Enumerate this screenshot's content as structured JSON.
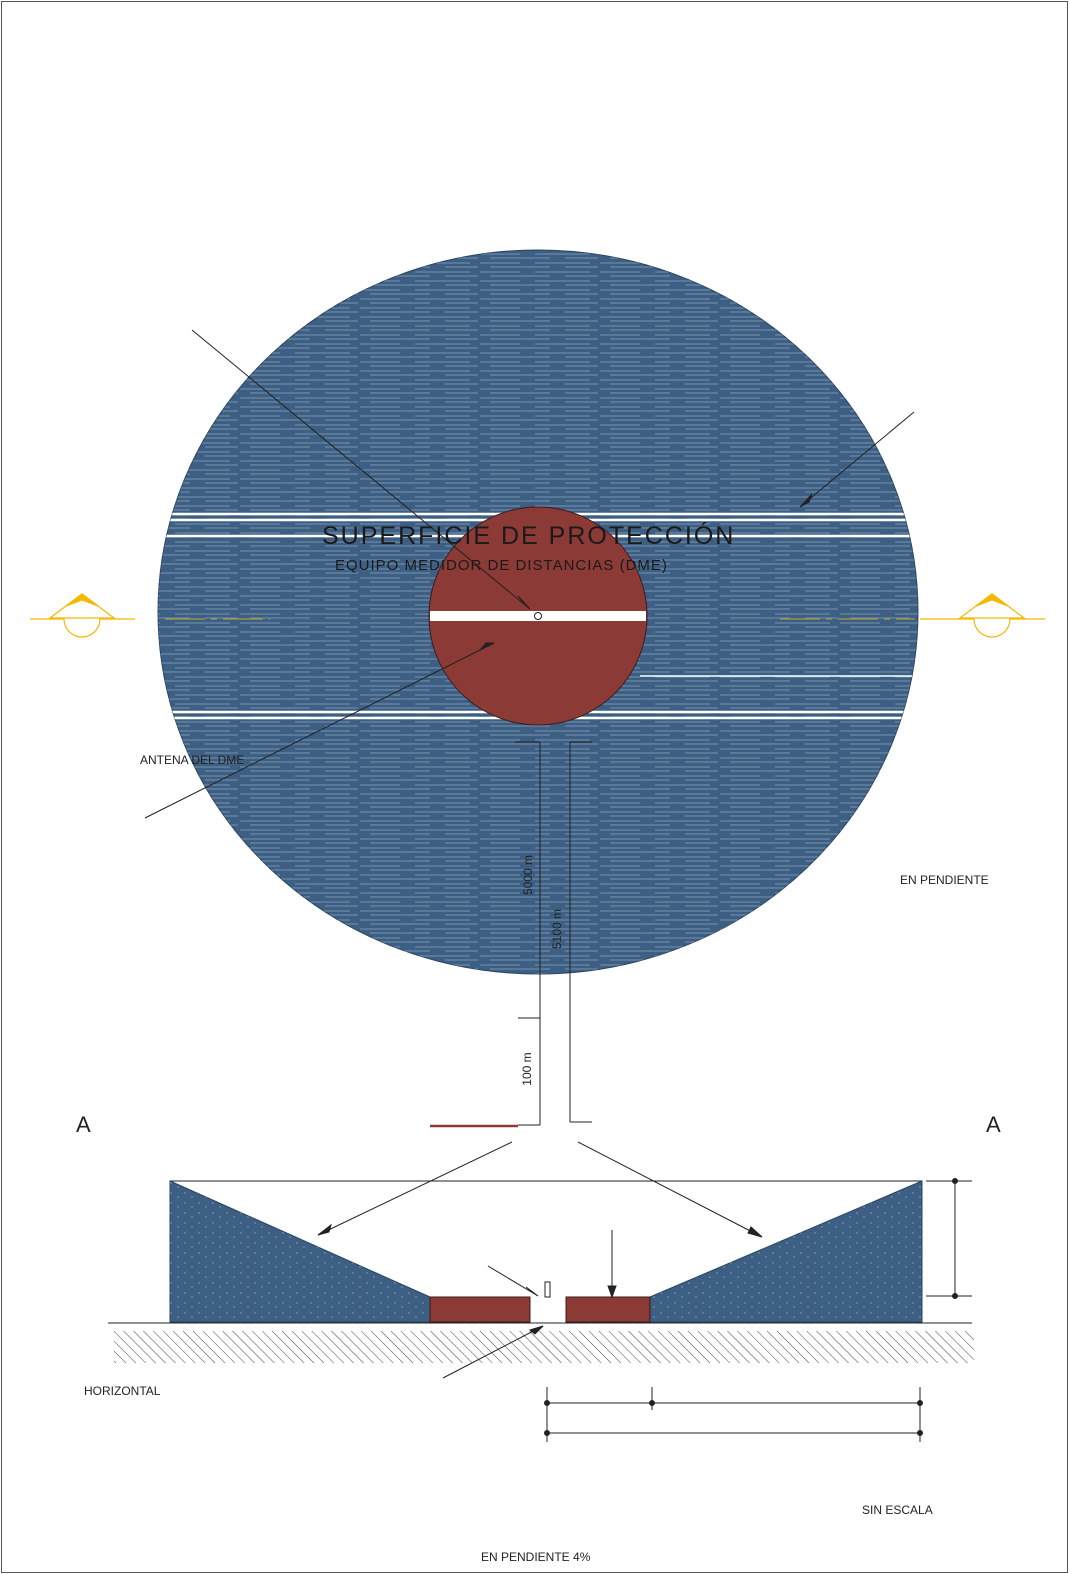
{
  "title": {
    "line1": "SUPERFICIE DE PROTECCIÓN",
    "line2": "EQUIPO MEDIDOR DE DISTANCIAS (DME)"
  },
  "labels": {
    "antenna": "ANTENA DEL DME",
    "sloped_right": "EN PENDIENTE",
    "horizontal": "HORIZONTAL",
    "scale": "SIN ESCALA",
    "sloped_bottom": "EN PENDIENTE 4%"
  },
  "section_marks": {
    "left": "A",
    "right": "A"
  },
  "dimensions": {
    "outer_radius": "5000 m",
    "outer_total": "5100 m",
    "inner_radius": "100 m"
  },
  "colors": {
    "outer_surface": "#3d5f84",
    "inner_surface": "#8b3a36",
    "section_marker": "#f5b800",
    "frame": "#555555"
  }
}
